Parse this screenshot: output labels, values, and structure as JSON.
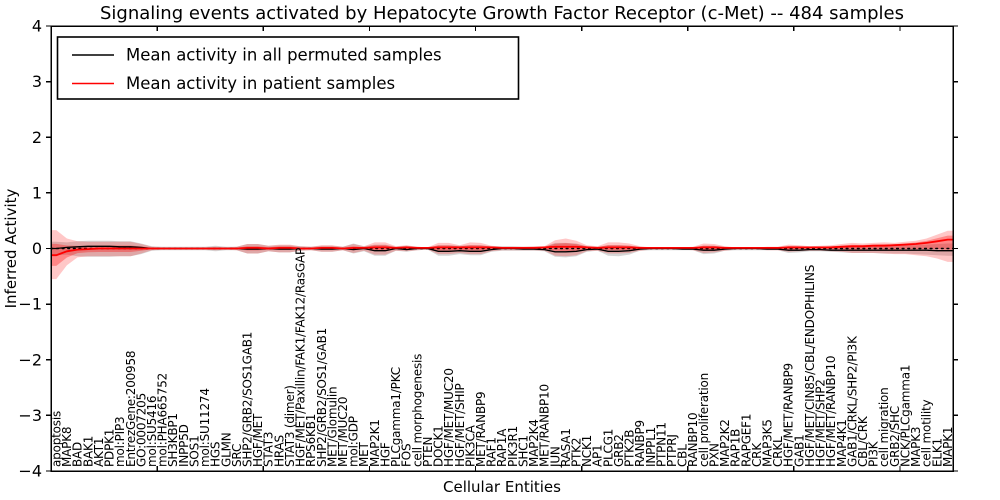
{
  "title": "Signaling events activated by Hepatocyte Growth Factor Receptor (c-Met) -- 484 samples",
  "legend": {
    "items": [
      {
        "label": "Mean activity in all permuted samples",
        "color": "#000000"
      },
      {
        "label": "Mean activity in patient samples",
        "color": "#ff0000"
      }
    ],
    "position": "upper left"
  },
  "colors": {
    "patient_line": "#ff0000",
    "patient_band": "#ff0000",
    "permuted_line": "#000000",
    "permuted_band": "#808080",
    "axis": "#000000",
    "background": "#ffffff"
  },
  "chart_data": {
    "type": "line",
    "title": "Signaling events activated by Hepatocyte Growth Factor Receptor (c-Met) -- 484 samples",
    "xlabel": "Cellular Entities",
    "ylabel": "Inferred Activity",
    "ylim": [
      -4,
      4
    ],
    "grid": false,
    "legend_position": "upper left",
    "zero_reference_line": "dotted",
    "ytick_values": [
      4,
      3,
      2,
      1,
      0,
      -1,
      -2,
      -3,
      -4
    ],
    "ytick_labels": [
      "4",
      "3",
      "2",
      "1",
      "0",
      "−1",
      "−2",
      "−3",
      "−4"
    ],
    "categories": [
      "apoptosis",
      "MAPK8",
      "BAD",
      "BAK1",
      "AKT1",
      "PDPK1",
      "mol:PIP3",
      "EntrezGene:200958",
      "GO:0007205",
      "mol:SU5416",
      "mol:PHA665752",
      "SH3KBP1",
      "INPP5D",
      "SOS1",
      "mol:SU11274",
      "HGS",
      "GLMN",
      "SRC",
      "SHP2/GRB2/SOS1GAB1",
      "HGF/MET",
      "STAT3",
      "HRAS",
      "STAT3 (dimer)",
      "HGF/MET/Paxillin/FAK1/FAK12/RasGAP",
      "RPS6KB1",
      "SHP2/GRB2/SOS1/GAB1",
      "MET/Glomulin",
      "MET/MUC20",
      "mol:GDP",
      "MET",
      "MAP2K1",
      "HGF",
      "PLCgamma1/PKC",
      "FOS",
      "cell morphogenesis",
      "PTEN",
      "DOCK1",
      "HGF/MET/MUC20",
      "HGF/MET/SHIP",
      "PIK3CA",
      "MET/RANBP9",
      "RAF1",
      "RAP1A",
      "PIK3R1",
      "SHC1",
      "MAP2K4",
      "MET/RANBP10",
      "JUN",
      "RASA1",
      "PTK2",
      "NCK1",
      "AP1",
      "PLCG1",
      "GRB2",
      "PTK2B",
      "RANBP9",
      "INPPL1",
      "PTPN11",
      "PTPRJ",
      "CBL",
      "RANBP10",
      "cell proliferation",
      "PXN",
      "MAP2K2",
      "RAP1B",
      "RAPGEF1",
      "CRK",
      "MAP3K5",
      "CRKL",
      "HGF/MET/RANBP9",
      "GAB1",
      "HGF/MET/CIN85/CBL/ENDOPHILINS",
      "HGF/MET/SHP2",
      "HGF/MET/RANBP10",
      "MAP4K1",
      "GAB1/CRKL/SHP2/PI3K",
      "CBL/CRK",
      "PI3K",
      "cell migration",
      "GRB2/SHC",
      "NCK/PLCgamma1",
      "MAPK3",
      "cell motility",
      "ELK1",
      "MAPK1"
    ],
    "series": [
      {
        "name": "Mean activity in all permuted samples",
        "color": "#000000",
        "values": [
          0.0,
          0.02,
          0.03,
          0.04,
          0.04,
          0.04,
          0.03,
          0.03,
          0.02,
          0.0,
          0.0,
          0.0,
          0.0,
          0.0,
          0.0,
          0.0,
          0.0,
          0.0,
          -0.01,
          -0.01,
          0.0,
          -0.01,
          -0.01,
          0.0,
          0.0,
          -0.01,
          -0.01,
          0.0,
          -0.02,
          0.0,
          -0.04,
          -0.04,
          0.0,
          -0.02,
          0.0,
          0.0,
          -0.05,
          -0.05,
          -0.04,
          -0.05,
          -0.05,
          -0.02,
          0.0,
          0.0,
          -0.01,
          -0.01,
          -0.02,
          -0.06,
          -0.06,
          -0.05,
          -0.02,
          -0.01,
          -0.05,
          -0.05,
          -0.04,
          -0.01,
          0.0,
          0.0,
          0.0,
          -0.01,
          -0.01,
          -0.03,
          -0.03,
          -0.01,
          0.0,
          0.0,
          0.0,
          -0.01,
          -0.01,
          -0.03,
          -0.03,
          -0.02,
          -0.02,
          -0.03,
          -0.03,
          -0.03,
          -0.03,
          -0.03,
          -0.03,
          -0.03,
          -0.03,
          -0.03,
          -0.03,
          -0.04,
          -0.04
        ],
        "band_hi": [
          0.12,
          0.11,
          0.13,
          0.14,
          0.14,
          0.14,
          0.13,
          0.13,
          0.09,
          0.04,
          0.03,
          0.03,
          0.03,
          0.03,
          0.03,
          0.05,
          0.03,
          0.03,
          0.08,
          0.08,
          0.05,
          0.06,
          0.06,
          0.04,
          0.03,
          0.05,
          0.05,
          0.03,
          0.09,
          0.04,
          0.07,
          0.07,
          0.03,
          0.05,
          0.03,
          0.02,
          0.06,
          0.06,
          0.05,
          0.06,
          0.06,
          0.04,
          0.04,
          0.04,
          0.03,
          0.03,
          0.03,
          0.1,
          0.1,
          0.09,
          0.04,
          0.03,
          0.06,
          0.06,
          0.05,
          0.03,
          0.02,
          0.02,
          0.02,
          0.02,
          0.02,
          0.05,
          0.05,
          0.03,
          0.02,
          0.02,
          0.02,
          0.02,
          0.02,
          0.04,
          0.04,
          0.03,
          0.03,
          0.04,
          0.05,
          0.05,
          0.05,
          0.05,
          0.05,
          0.05,
          0.06,
          0.06,
          0.07,
          0.08,
          0.09
        ],
        "band_lo": [
          -0.12,
          -0.11,
          -0.14,
          -0.15,
          -0.15,
          -0.15,
          -0.14,
          -0.14,
          -0.1,
          -0.04,
          -0.03,
          -0.03,
          -0.03,
          -0.03,
          -0.03,
          -0.05,
          -0.03,
          -0.03,
          -0.09,
          -0.09,
          -0.05,
          -0.07,
          -0.07,
          -0.04,
          -0.03,
          -0.06,
          -0.06,
          -0.03,
          -0.09,
          -0.05,
          -0.13,
          -0.13,
          -0.04,
          -0.06,
          -0.03,
          -0.02,
          -0.13,
          -0.13,
          -0.1,
          -0.12,
          -0.12,
          -0.06,
          -0.04,
          -0.04,
          -0.04,
          -0.04,
          -0.05,
          -0.15,
          -0.16,
          -0.14,
          -0.06,
          -0.04,
          -0.13,
          -0.14,
          -0.11,
          -0.04,
          -0.03,
          -0.03,
          -0.03,
          -0.03,
          -0.03,
          -0.1,
          -0.09,
          -0.04,
          -0.03,
          -0.03,
          -0.03,
          -0.03,
          -0.03,
          -0.08,
          -0.07,
          -0.05,
          -0.05,
          -0.06,
          -0.07,
          -0.08,
          -0.08,
          -0.08,
          -0.09,
          -0.09,
          -0.09,
          -0.1,
          -0.11,
          -0.12,
          -0.13
        ]
      },
      {
        "name": "Mean activity in patient samples",
        "color": "#ff0000",
        "values": [
          -0.12,
          -0.05,
          -0.02,
          -0.01,
          0.0,
          0.0,
          0.0,
          0.0,
          0.0,
          0.0,
          0.0,
          0.0,
          0.0,
          0.0,
          0.0,
          0.0,
          0.0,
          0.0,
          0.01,
          0.01,
          0.0,
          0.01,
          0.01,
          0.0,
          0.0,
          0.01,
          0.01,
          0.0,
          0.01,
          0.01,
          0.02,
          0.02,
          0.01,
          0.02,
          0.01,
          0.01,
          0.02,
          0.02,
          0.02,
          0.02,
          0.02,
          0.02,
          0.01,
          0.01,
          0.01,
          0.01,
          0.02,
          0.03,
          0.03,
          0.03,
          0.02,
          0.01,
          0.02,
          0.02,
          0.02,
          0.01,
          0.01,
          0.01,
          0.01,
          0.01,
          0.01,
          0.02,
          0.02,
          0.01,
          0.01,
          0.01,
          0.01,
          0.01,
          0.01,
          0.02,
          0.02,
          0.02,
          0.02,
          0.02,
          0.03,
          0.04,
          0.04,
          0.05,
          0.05,
          0.06,
          0.07,
          0.08,
          0.1,
          0.13,
          0.16
        ],
        "band_hi": [
          0.33,
          0.18,
          0.13,
          0.12,
          0.12,
          0.12,
          0.12,
          0.12,
          0.08,
          0.03,
          0.02,
          0.02,
          0.02,
          0.02,
          0.02,
          0.03,
          0.02,
          0.03,
          0.08,
          0.08,
          0.05,
          0.07,
          0.07,
          0.04,
          0.03,
          0.06,
          0.06,
          0.03,
          0.08,
          0.04,
          0.11,
          0.11,
          0.04,
          0.06,
          0.03,
          0.02,
          0.1,
          0.1,
          0.06,
          0.11,
          0.1,
          0.05,
          0.03,
          0.03,
          0.03,
          0.04,
          0.04,
          0.15,
          0.18,
          0.14,
          0.06,
          0.04,
          0.11,
          0.11,
          0.09,
          0.04,
          0.02,
          0.02,
          0.02,
          0.02,
          0.03,
          0.09,
          0.08,
          0.04,
          0.02,
          0.02,
          0.02,
          0.03,
          0.03,
          0.07,
          0.06,
          0.04,
          0.05,
          0.06,
          0.08,
          0.1,
          0.09,
          0.1,
          0.11,
          0.1,
          0.12,
          0.14,
          0.18,
          0.25,
          0.32
        ],
        "band_lo": [
          -0.55,
          -0.3,
          -0.16,
          -0.14,
          -0.14,
          -0.14,
          -0.14,
          -0.14,
          -0.09,
          -0.03,
          -0.02,
          -0.02,
          -0.02,
          -0.02,
          -0.02,
          -0.03,
          -0.02,
          -0.03,
          -0.09,
          -0.09,
          -0.05,
          -0.07,
          -0.07,
          -0.04,
          -0.03,
          -0.06,
          -0.06,
          -0.03,
          -0.08,
          -0.04,
          -0.11,
          -0.11,
          -0.04,
          -0.05,
          -0.03,
          -0.02,
          -0.1,
          -0.1,
          -0.08,
          -0.1,
          -0.1,
          -0.05,
          -0.03,
          -0.03,
          -0.03,
          -0.03,
          -0.04,
          -0.13,
          -0.14,
          -0.12,
          -0.05,
          -0.04,
          -0.09,
          -0.09,
          -0.08,
          -0.04,
          -0.02,
          -0.02,
          -0.02,
          -0.02,
          -0.03,
          -0.08,
          -0.07,
          -0.04,
          -0.02,
          -0.02,
          -0.02,
          -0.03,
          -0.03,
          -0.06,
          -0.05,
          -0.04,
          -0.04,
          -0.05,
          -0.06,
          -0.08,
          -0.08,
          -0.08,
          -0.09,
          -0.1,
          -0.1,
          -0.12,
          -0.14,
          -0.18,
          -0.24
        ]
      }
    ]
  }
}
